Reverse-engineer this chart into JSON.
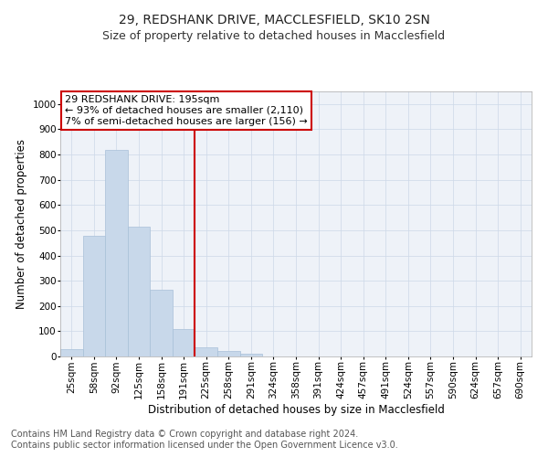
{
  "title1": "29, REDSHANK DRIVE, MACCLESFIELD, SK10 2SN",
  "title2": "Size of property relative to detached houses in Macclesfield",
  "xlabel": "Distribution of detached houses by size in Macclesfield",
  "ylabel": "Number of detached properties",
  "footer1": "Contains HM Land Registry data © Crown copyright and database right 2024.",
  "footer2": "Contains public sector information licensed under the Open Government Licence v3.0.",
  "bar_labels": [
    "25sqm",
    "58sqm",
    "92sqm",
    "125sqm",
    "158sqm",
    "191sqm",
    "225sqm",
    "258sqm",
    "291sqm",
    "324sqm",
    "358sqm",
    "391sqm",
    "424sqm",
    "457sqm",
    "491sqm",
    "524sqm",
    "557sqm",
    "590sqm",
    "624sqm",
    "657sqm",
    "690sqm"
  ],
  "bar_values": [
    30,
    478,
    820,
    515,
    265,
    110,
    35,
    22,
    10,
    0,
    0,
    0,
    0,
    0,
    0,
    0,
    0,
    0,
    0,
    0,
    0
  ],
  "bar_color": "#c8d8ea",
  "bar_edge_color": "#a8c0d8",
  "property_line_label": "29 REDSHANK DRIVE: 195sqm",
  "annotation_line1": "← 93% of detached houses are smaller (2,110)",
  "annotation_line2": "7% of semi-detached houses are larger (156) →",
  "annotation_box_color": "#ffffff",
  "annotation_box_edge_color": "#cc0000",
  "vline_color": "#cc0000",
  "ylim": [
    0,
    1050
  ],
  "grid_color": "#ccd8e8",
  "bg_color": "#eef2f8",
  "title1_fontsize": 10,
  "title2_fontsize": 9,
  "axis_label_fontsize": 8.5,
  "tick_fontsize": 7.5,
  "annotation_fontsize": 8,
  "footer_fontsize": 7
}
